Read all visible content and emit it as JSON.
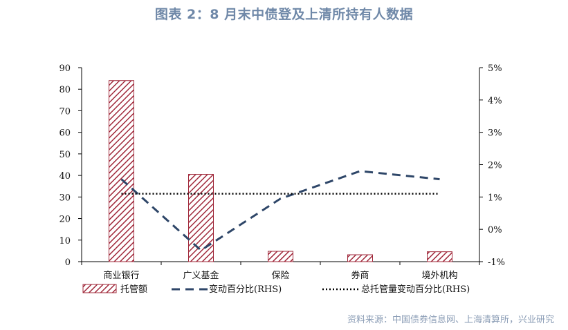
{
  "title": "图表 2：8 月末中债登及上清所持有人数据",
  "source": "资料来源：中国债券信息网、上海清算所，兴业研究",
  "colors": {
    "bar": "#a0283a",
    "line": "#2e4668",
    "total_line": "#000000",
    "title": "#6f88a8",
    "source": "#8a9cb5"
  },
  "chart_data": {
    "type": "bar",
    "categories": [
      "商业银行",
      "广义基金",
      "保险",
      "券商",
      "境外机构"
    ],
    "series": [
      {
        "name": "托管额",
        "type": "bar",
        "axis": "left",
        "values": [
          84,
          40.5,
          4.8,
          3.2,
          4.6
        ]
      },
      {
        "name": "变动百分比(RHS)",
        "type": "line",
        "style": "dashed",
        "axis": "right",
        "values": [
          1.55,
          -0.65,
          0.95,
          1.8,
          1.55
        ]
      },
      {
        "name": "总托管量变动百分比(RHS)",
        "type": "line",
        "style": "dotted",
        "axis": "right",
        "values": [
          1.1,
          1.1,
          1.1,
          1.1,
          1.1
        ]
      }
    ],
    "y_left": {
      "min": 0,
      "max": 90,
      "ticks": [
        0,
        10,
        20,
        30,
        40,
        50,
        60,
        70,
        80,
        90
      ]
    },
    "y_right": {
      "min": -1,
      "max": 5,
      "tick_labels": [
        "-1%",
        "0%",
        "1%",
        "2%",
        "3%",
        "4%",
        "5%"
      ],
      "tick_values": [
        -1,
        0,
        1,
        2,
        3,
        4,
        5
      ]
    },
    "legend_position": "bottom",
    "grid": false
  }
}
